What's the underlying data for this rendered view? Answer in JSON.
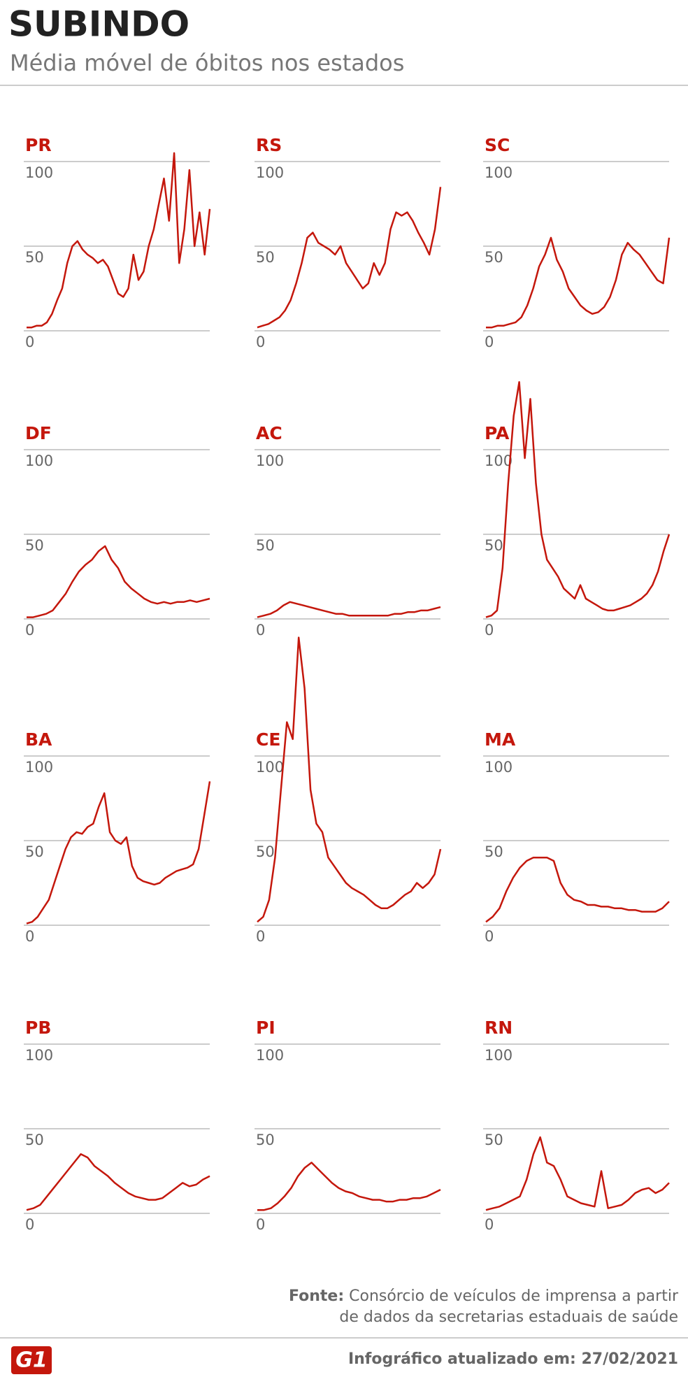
{
  "title": "SUBINDO",
  "subtitle": "Média móvel de óbitos nos estados",
  "chart_data": [
    {
      "type": "line",
      "title": "PR",
      "color": "#c4170c",
      "ylim": [
        0,
        100
      ],
      "yticks": [
        0,
        50,
        100
      ],
      "grid": true,
      "values": [
        2,
        2,
        3,
        3,
        5,
        10,
        18,
        25,
        40,
        50,
        53,
        48,
        45,
        43,
        40,
        42,
        38,
        30,
        22,
        20,
        25,
        45,
        30,
        35,
        50,
        60,
        75,
        90,
        65,
        105,
        40,
        60,
        95,
        50,
        70,
        45,
        72
      ]
    },
    {
      "type": "line",
      "title": "RS",
      "color": "#c4170c",
      "ylim": [
        0,
        100
      ],
      "yticks": [
        0,
        50,
        100
      ],
      "grid": true,
      "values": [
        2,
        3,
        4,
        6,
        8,
        12,
        18,
        28,
        40,
        55,
        58,
        52,
        50,
        48,
        45,
        50,
        40,
        35,
        30,
        25,
        28,
        40,
        33,
        40,
        60,
        70,
        68,
        70,
        65,
        58,
        52,
        45,
        60,
        85
      ]
    },
    {
      "type": "line",
      "title": "SC",
      "color": "#c4170c",
      "ylim": [
        0,
        100
      ],
      "yticks": [
        0,
        50,
        100
      ],
      "grid": true,
      "values": [
        2,
        2,
        3,
        3,
        4,
        5,
        8,
        15,
        25,
        38,
        45,
        55,
        42,
        35,
        25,
        20,
        15,
        12,
        10,
        11,
        14,
        20,
        30,
        45,
        52,
        48,
        45,
        40,
        35,
        30,
        28,
        55
      ]
    },
    {
      "type": "line",
      "title": "DF",
      "color": "#c4170c",
      "ylim": [
        0,
        100
      ],
      "yticks": [
        0,
        50,
        100
      ],
      "grid": true,
      "values": [
        1,
        1,
        2,
        3,
        5,
        10,
        15,
        22,
        28,
        32,
        35,
        40,
        43,
        35,
        30,
        22,
        18,
        15,
        12,
        10,
        9,
        10,
        9,
        10,
        10,
        11,
        10,
        11,
        12
      ]
    },
    {
      "type": "line",
      "title": "AC",
      "color": "#c4170c",
      "ylim": [
        0,
        100
      ],
      "yticks": [
        0,
        50,
        100
      ],
      "grid": true,
      "values": [
        1,
        2,
        3,
        5,
        8,
        10,
        9,
        8,
        7,
        6,
        5,
        4,
        3,
        3,
        2,
        2,
        2,
        2,
        2,
        2,
        2,
        3,
        3,
        4,
        4,
        5,
        5,
        6,
        7
      ]
    },
    {
      "type": "line",
      "title": "PA",
      "color": "#c4170c",
      "ylim": [
        0,
        100
      ],
      "yticks": [
        0,
        50,
        100
      ],
      "grid": true,
      "values": [
        1,
        2,
        5,
        30,
        80,
        120,
        140,
        95,
        130,
        80,
        50,
        35,
        30,
        25,
        18,
        15,
        12,
        20,
        12,
        10,
        8,
        6,
        5,
        5,
        6,
        7,
        8,
        10,
        12,
        15,
        20,
        28,
        40,
        50
      ]
    },
    {
      "type": "line",
      "title": "BA",
      "color": "#c4170c",
      "ylim": [
        0,
        100
      ],
      "yticks": [
        0,
        50,
        100
      ],
      "grid": true,
      "values": [
        1,
        2,
        5,
        10,
        15,
        25,
        35,
        45,
        52,
        55,
        54,
        58,
        60,
        70,
        78,
        55,
        50,
        48,
        52,
        35,
        28,
        26,
        25,
        24,
        25,
        28,
        30,
        32,
        33,
        34,
        36,
        45,
        65,
        85
      ]
    },
    {
      "type": "line",
      "title": "CE",
      "color": "#c4170c",
      "ylim": [
        0,
        100
      ],
      "yticks": [
        0,
        50,
        100
      ],
      "grid": true,
      "values": [
        2,
        5,
        15,
        40,
        80,
        120,
        110,
        170,
        140,
        80,
        60,
        55,
        40,
        35,
        30,
        25,
        22,
        20,
        18,
        15,
        12,
        10,
        10,
        12,
        15,
        18,
        20,
        25,
        22,
        25,
        30,
        45
      ]
    },
    {
      "type": "line",
      "title": "MA",
      "color": "#c4170c",
      "ylim": [
        0,
        100
      ],
      "yticks": [
        0,
        50,
        100
      ],
      "grid": true,
      "values": [
        2,
        5,
        10,
        20,
        28,
        34,
        38,
        40,
        40,
        40,
        38,
        25,
        18,
        15,
        14,
        12,
        12,
        11,
        11,
        10,
        10,
        9,
        9,
        8,
        8,
        8,
        10,
        14
      ]
    },
    {
      "type": "line",
      "title": "PB",
      "color": "#c4170c",
      "ylim": [
        0,
        100
      ],
      "yticks": [
        0,
        50,
        100
      ],
      "grid": true,
      "values": [
        2,
        3,
        5,
        10,
        15,
        20,
        25,
        30,
        35,
        33,
        28,
        25,
        22,
        18,
        15,
        12,
        10,
        9,
        8,
        8,
        9,
        12,
        15,
        18,
        16,
        17,
        20,
        22
      ]
    },
    {
      "type": "line",
      "title": "PI",
      "color": "#c4170c",
      "ylim": [
        0,
        100
      ],
      "yticks": [
        0,
        50,
        100
      ],
      "grid": true,
      "values": [
        2,
        2,
        3,
        6,
        10,
        15,
        22,
        27,
        30,
        26,
        22,
        18,
        15,
        13,
        12,
        10,
        9,
        8,
        8,
        7,
        7,
        8,
        8,
        9,
        9,
        10,
        12,
        14
      ]
    },
    {
      "type": "line",
      "title": "RN",
      "color": "#c4170c",
      "ylim": [
        0,
        100
      ],
      "yticks": [
        0,
        50,
        100
      ],
      "grid": true,
      "values": [
        2,
        3,
        4,
        6,
        8,
        10,
        20,
        35,
        45,
        30,
        28,
        20,
        10,
        8,
        6,
        5,
        4,
        25,
        3,
        4,
        5,
        8,
        12,
        14,
        15,
        12,
        14,
        18
      ]
    }
  ],
  "source": {
    "label": "Fonte:",
    "lines": [
      "Consórcio de veículos de imprensa a partir",
      "de dados da secretarias estaduais de saúde"
    ]
  },
  "footer": "Infográfico atualizado em: 27/02/2021",
  "logo": "G1"
}
